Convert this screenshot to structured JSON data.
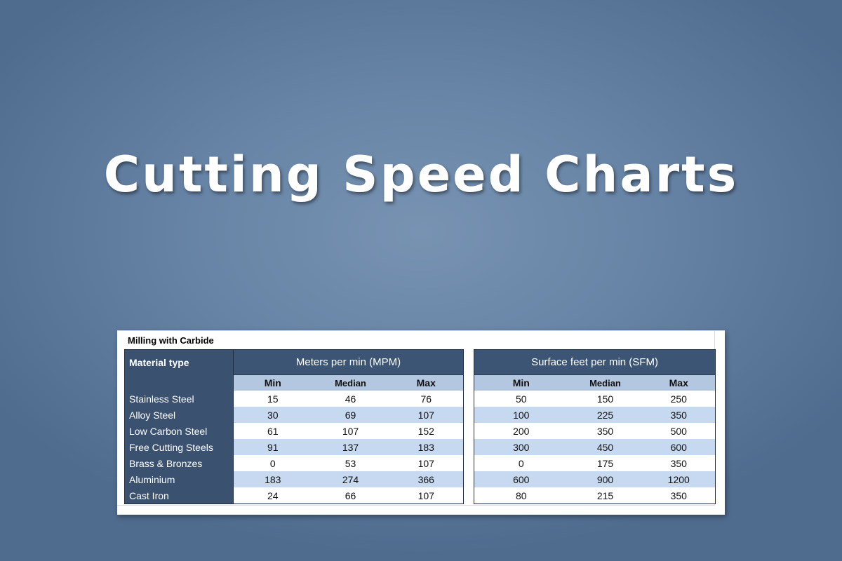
{
  "title": "Cutting Speed Charts",
  "sheet_title": "Milling with Carbide",
  "material_header": "Material type",
  "groups": [
    {
      "name": "Meters per min (MPM)",
      "columns": [
        "Min",
        "Median",
        "Max"
      ]
    },
    {
      "name": "Surface feet per min (SFM)",
      "columns": [
        "Min",
        "Median",
        "Max"
      ]
    }
  ],
  "rows": [
    {
      "material": "Stainless Steel",
      "mpm": [
        "15",
        "46",
        "76"
      ],
      "sfm": [
        "50",
        "150",
        "250"
      ]
    },
    {
      "material": "Alloy Steel",
      "mpm": [
        "30",
        "69",
        "107"
      ],
      "sfm": [
        "100",
        "225",
        "350"
      ]
    },
    {
      "material": "Low Carbon Steel",
      "mpm": [
        "61",
        "107",
        "152"
      ],
      "sfm": [
        "200",
        "350",
        "500"
      ]
    },
    {
      "material": "Free Cutting Steels",
      "mpm": [
        "91",
        "137",
        "183"
      ],
      "sfm": [
        "300",
        "450",
        "600"
      ]
    },
    {
      "material": "Brass & Bronzes",
      "mpm": [
        "0",
        "53",
        "107"
      ],
      "sfm": [
        "0",
        "175",
        "350"
      ]
    },
    {
      "material": "Aluminium",
      "mpm": [
        "183",
        "274",
        "366"
      ],
      "sfm": [
        "600",
        "900",
        "1200"
      ]
    },
    {
      "material": "Cast Iron",
      "mpm": [
        "24",
        "66",
        "107"
      ],
      "sfm": [
        "80",
        "215",
        "350"
      ]
    }
  ],
  "colors": {
    "header_dark": "#3a5170",
    "subheader": "#b3c7e1",
    "row_stripe": "#c6d9f0",
    "background": "#6784a6"
  }
}
